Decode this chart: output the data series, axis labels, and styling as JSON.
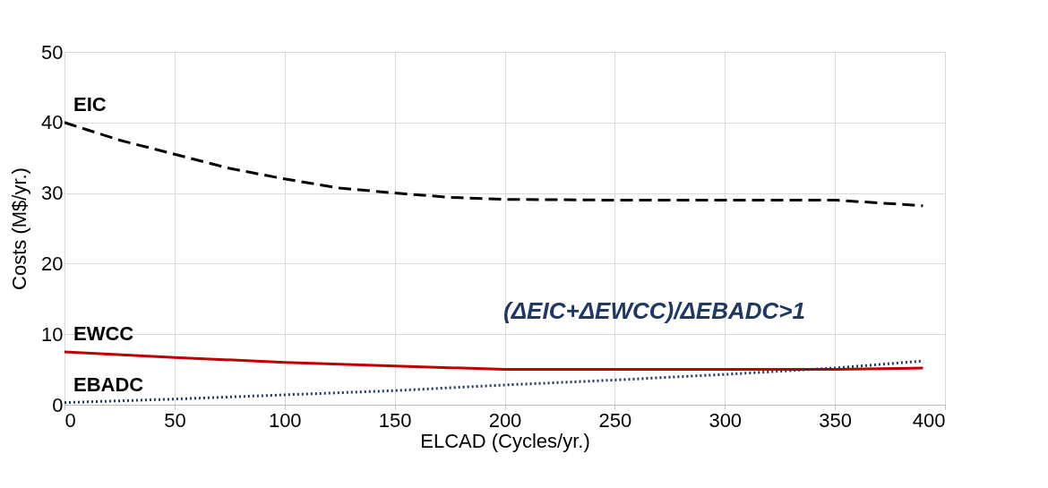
{
  "chart_data": {
    "type": "line",
    "xlabel": "ELCAD (Cycles/yr.)",
    "ylabel": "Costs (M$/yr.)",
    "xlim": [
      0,
      400
    ],
    "xticks": [
      0,
      50,
      100,
      150,
      200,
      250,
      300,
      350,
      400
    ],
    "ylim": [
      0,
      50
    ],
    "yticks": [
      0,
      10,
      20,
      30,
      40,
      50
    ],
    "grid": true,
    "series": [
      {
        "name": "EIC",
        "color": "#000000",
        "line_style": "dashed",
        "x": [
          0,
          25,
          50,
          75,
          100,
          125,
          150,
          175,
          200,
          250,
          300,
          350,
          390
        ],
        "values": [
          40,
          37.5,
          35.5,
          33.5,
          32,
          30.7,
          30,
          29.4,
          29.1,
          29,
          29,
          29,
          28.2
        ]
      },
      {
        "name": "EWCC",
        "color": "#c00000",
        "line_style": "solid",
        "x": [
          0,
          50,
          100,
          150,
          200,
          250,
          300,
          350,
          390
        ],
        "values": [
          7.5,
          6.7,
          6,
          5.5,
          5,
          5,
          5,
          5,
          5.2
        ]
      },
      {
        "name": "EBADC",
        "color": "#1f3864",
        "line_style": "dotted",
        "x": [
          0,
          50,
          100,
          150,
          200,
          250,
          300,
          350,
          390
        ],
        "values": [
          0.3,
          0.8,
          1.4,
          2,
          2.8,
          3.5,
          4.3,
          5.2,
          6.2
        ]
      }
    ],
    "annotations": [
      "(ΔEIC+ΔEWCC)/ΔEBADC>1"
    ]
  }
}
